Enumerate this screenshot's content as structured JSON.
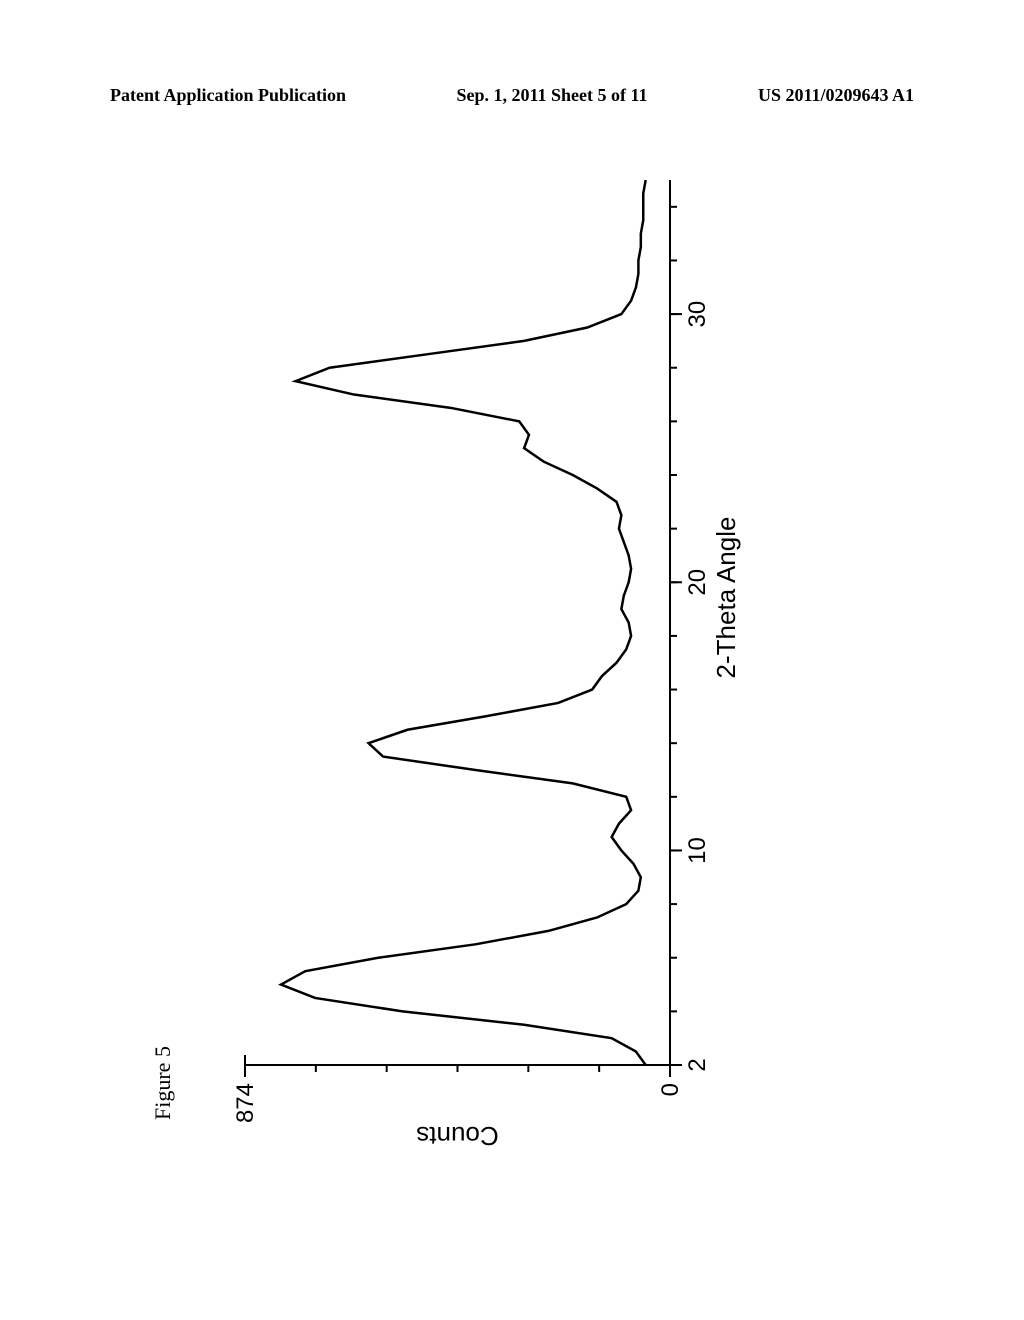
{
  "header": {
    "left": "Patent Application Publication",
    "center": "Sep. 1, 2011  Sheet 5 of 11",
    "right": "US 2011/0209643 A1"
  },
  "figure_label": "Figure 5",
  "chart": {
    "type": "line",
    "x_axis": {
      "label": "2-Theta Angle",
      "min": 2,
      "max": 35,
      "major_ticks": [
        2,
        10,
        20,
        30
      ],
      "minor_step": 2,
      "label_fontsize": 26,
      "tick_fontsize": 24
    },
    "y_axis": {
      "label": "Counts",
      "min": 0,
      "max": 874,
      "major_ticks": [
        0,
        874
      ],
      "minor_count": 6,
      "label_fontsize": 26,
      "tick_fontsize": 24
    },
    "line_color": "#000000",
    "line_width": 2.5,
    "background_color": "#ffffff",
    "data_points": [
      [
        2,
        50
      ],
      [
        2.5,
        70
      ],
      [
        3,
        120
      ],
      [
        3.5,
        300
      ],
      [
        4,
        550
      ],
      [
        4.5,
        730
      ],
      [
        5,
        800
      ],
      [
        5.5,
        750
      ],
      [
        6,
        600
      ],
      [
        6.5,
        400
      ],
      [
        7,
        250
      ],
      [
        7.5,
        150
      ],
      [
        8,
        90
      ],
      [
        8.5,
        65
      ],
      [
        9,
        60
      ],
      [
        9.5,
        75
      ],
      [
        10,
        100
      ],
      [
        10.5,
        120
      ],
      [
        11,
        105
      ],
      [
        11.5,
        80
      ],
      [
        12,
        90
      ],
      [
        12.5,
        200
      ],
      [
        13,
        400
      ],
      [
        13.5,
        590
      ],
      [
        14,
        620
      ],
      [
        14.5,
        540
      ],
      [
        15,
        380
      ],
      [
        15.5,
        230
      ],
      [
        16,
        160
      ],
      [
        16.5,
        140
      ],
      [
        17,
        110
      ],
      [
        17.5,
        90
      ],
      [
        18,
        80
      ],
      [
        18.5,
        85
      ],
      [
        19,
        100
      ],
      [
        19.5,
        95
      ],
      [
        20,
        85
      ],
      [
        20.5,
        80
      ],
      [
        21,
        85
      ],
      [
        21.5,
        95
      ],
      [
        22,
        105
      ],
      [
        22.5,
        100
      ],
      [
        23,
        110
      ],
      [
        23.5,
        150
      ],
      [
        24,
        200
      ],
      [
        24.5,
        260
      ],
      [
        25,
        300
      ],
      [
        25.5,
        290
      ],
      [
        26,
        310
      ],
      [
        26.5,
        450
      ],
      [
        27,
        650
      ],
      [
        27.5,
        770
      ],
      [
        28,
        700
      ],
      [
        28.5,
        500
      ],
      [
        29,
        300
      ],
      [
        29.5,
        170
      ],
      [
        30,
        100
      ],
      [
        30.5,
        80
      ],
      [
        31,
        70
      ],
      [
        31.5,
        65
      ],
      [
        32,
        65
      ],
      [
        32.5,
        60
      ],
      [
        33,
        60
      ],
      [
        33.5,
        55
      ],
      [
        34,
        55
      ],
      [
        34.5,
        55
      ],
      [
        35,
        50
      ]
    ]
  }
}
